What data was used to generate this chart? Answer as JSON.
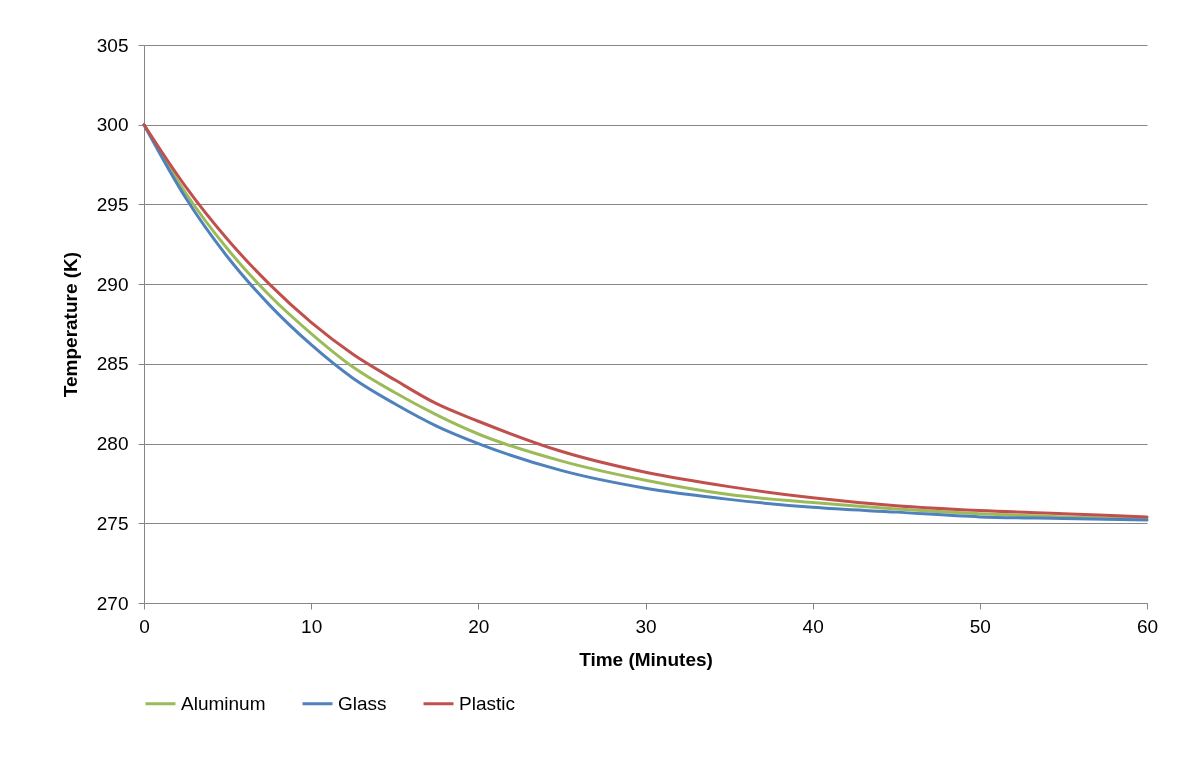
{
  "chart_data": {
    "type": "line",
    "xlabel": "Time (Minutes)",
    "ylabel": "Temperature (K)",
    "x": [
      0,
      2.5,
      5,
      7.5,
      10,
      12.5,
      15,
      17.5,
      20,
      25,
      30,
      35,
      40,
      45,
      50,
      55,
      60
    ],
    "series": [
      {
        "name": "Aluminum",
        "color": "#9bbb59",
        "values": [
          300,
          295.7,
          292.2,
          289.3,
          286.9,
          284.8,
          283.2,
          281.8,
          280.6,
          278.9,
          277.7,
          276.8,
          276.3,
          275.9,
          275.6,
          275.4,
          275.3
        ]
      },
      {
        "name": "Glass",
        "color": "#4f81bd",
        "values": [
          300,
          295.4,
          291.7,
          288.7,
          286.2,
          284.1,
          282.5,
          281.1,
          280.0,
          278.3,
          277.2,
          276.5,
          276.0,
          275.7,
          275.4,
          275.3,
          275.2
        ]
      },
      {
        "name": "Plastic",
        "color": "#c0504d",
        "values": [
          300,
          296.1,
          292.8,
          290.0,
          287.6,
          285.6,
          284.0,
          282.5,
          281.4,
          279.5,
          278.2,
          277.3,
          276.6,
          276.1,
          275.8,
          275.6,
          275.4
        ]
      }
    ],
    "xlim": [
      0,
      60
    ],
    "xticks": [
      0,
      10,
      20,
      30,
      40,
      50,
      60
    ],
    "ylim": [
      270,
      305
    ],
    "yticks": [
      270,
      275,
      280,
      285,
      290,
      295,
      300,
      305
    ],
    "grid": "y",
    "legend": "bottom",
    "marker": "none",
    "line_style": "solid"
  }
}
